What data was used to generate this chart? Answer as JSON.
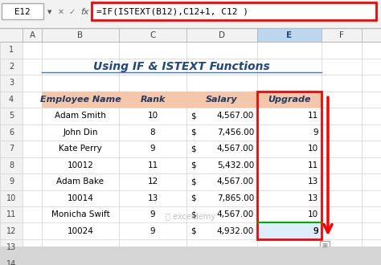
{
  "title": "Using IF & ISTEXT Functions",
  "formula_bar_cell": "E12",
  "formula_bar_text": "=IF(ISTEXT(B12),C12+1, C12 )",
  "col_headers": [
    "A",
    "B",
    "C",
    "D",
    "E",
    "F"
  ],
  "row_numbers": [
    "1",
    "2",
    "3",
    "4",
    "5",
    "6",
    "7",
    "8",
    "9",
    "10",
    "11",
    "12",
    "13",
    "14"
  ],
  "table_headers": [
    "Employee Name",
    "Rank",
    "Salary",
    "Upgrade"
  ],
  "table_data": [
    [
      "Adam Smith",
      "10",
      "$",
      "4,567.00",
      "11"
    ],
    [
      "John Din",
      "8",
      "$",
      "7,456.00",
      "9"
    ],
    [
      "Kate Perry",
      "9",
      "$",
      "4,567.00",
      "10"
    ],
    [
      "10012",
      "11",
      "$",
      "5,432.00",
      "11"
    ],
    [
      "Adam Bake",
      "12",
      "$",
      "4,567.00",
      "13"
    ],
    [
      "10014",
      "13",
      "$",
      "7,865.00",
      "13"
    ],
    [
      "Monicha Swift",
      "9",
      "$",
      "4,567.00",
      "10"
    ],
    [
      "10024",
      "9",
      "$",
      "4,932.00",
      "9"
    ]
  ],
  "header_bg": "#F4C7AA",
  "upgrade_header_bg": "#F4C7AA",
  "cell_bg": "#FFFFFF",
  "selected_cell_bg": "#FFFFFF",
  "grid_color": "#AAAAAA",
  "header_row_color": "#E8E8E8",
  "title_color": "#1F4788",
  "formula_box_border": "#FF0000",
  "upgrade_col_border": "#FF0000",
  "arrow_color": "#FF0000",
  "text_color": "#000000",
  "header_text_color": "#1F3864",
  "selected_col_header_bg": "#DDEEFF",
  "selected_col_header_text": "#1F4788",
  "excel_bg": "#FFFFFF",
  "row_header_bg": "#F2F2F2",
  "active_cell_E": "#FFFFFF",
  "row12_bg": "#E8F0FF"
}
